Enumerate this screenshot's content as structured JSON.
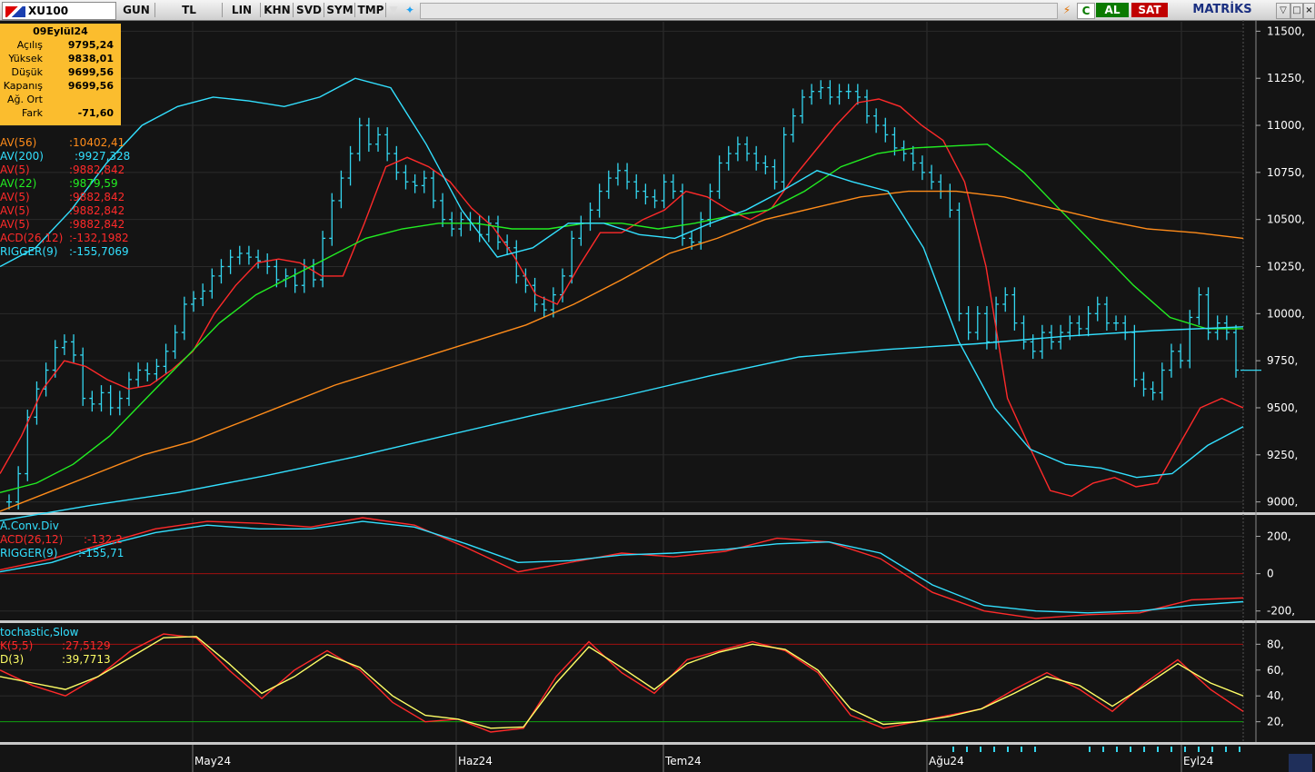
{
  "toolbar": {
    "symbol": "XU100",
    "buttons": [
      "GUN",
      "TL",
      "LIN",
      "KHN",
      "SVD",
      "SYM",
      "TMP"
    ],
    "buy_label": "AL",
    "sell_label": "SAT",
    "brand": "MATRİKS",
    "buy_color": "#0a7a00",
    "sell_color": "#c00000"
  },
  "info": {
    "date": "09Eylül24",
    "rows": [
      {
        "label": "Açılış",
        "value": "9795,24"
      },
      {
        "label": "Yüksek",
        "value": "9838,01"
      },
      {
        "label": "Düşük",
        "value": "9699,56"
      },
      {
        "label": "Kapanış",
        "value": "9699,56"
      },
      {
        "label": "Ağ. Ort",
        "value": ""
      },
      {
        "label": "Fark",
        "value": "-71,60"
      }
    ]
  },
  "main_legend": [
    {
      "label": "AV(56)",
      "value": ":10402,41",
      "color": "#ff8c1a"
    },
    {
      "label": "AV(200)",
      "value": ":9927,328",
      "color": "#33e0ff"
    },
    {
      "label": "AV(5)",
      "value": ":9882,842",
      "color": "#ff2a2a"
    },
    {
      "label": "AV(22)",
      "value": ":9879,59",
      "color": "#22ee22"
    },
    {
      "label": "AV(5)",
      "value": ":9882,842",
      "color": "#ff2a2a"
    },
    {
      "label": "AV(5)",
      "value": ":9882,842",
      "color": "#ff2a2a"
    },
    {
      "label": "AV(5)",
      "value": ":9882,842",
      "color": "#ff2a2a"
    },
    {
      "label": "ACD(26,12)",
      "value": ":-132,1982",
      "color": "#ff2a2a"
    },
    {
      "label": "RIGGER(9)",
      "value": ":-155,7069",
      "color": "#33e0ff"
    }
  ],
  "macd_legend": {
    "title": "A.Conv.Div",
    "items": [
      {
        "label": "ACD(26,12)",
        "value": ":-132,2",
        "color": "#ff2a2a"
      },
      {
        "label": "RIGGER(9)",
        "value": ":-155,71",
        "color": "#33e0ff"
      }
    ]
  },
  "stoch_legend": {
    "title": "tochastic,Slow",
    "items": [
      {
        "label": "K(5,5)",
        "value": ":27,5129",
        "color": "#ff2a2a"
      },
      {
        "label": "D(3)",
        "value": ":39,7713",
        "color": "#ffff66"
      }
    ]
  },
  "chart_data": [
    {
      "type": "bar",
      "subtype": "ohlc",
      "panel": "price",
      "x_labels": [
        "May24",
        "Haz24",
        "Tem24",
        "Ağu24",
        "Eyl24"
      ],
      "ylim": [
        8950,
        11550
      ],
      "yticks": [
        "11500,",
        "11250,",
        "11000,",
        "10750,",
        "10500,",
        "10250,",
        "10000,",
        "9750,",
        "9500,",
        "9250,",
        "9000,"
      ],
      "ytick_values": [
        11500,
        11250,
        11000,
        10750,
        10500,
        10250,
        10000,
        9750,
        9500,
        9250,
        9000
      ],
      "grid": true,
      "bar_close": [
        9000,
        9150,
        9450,
        9600,
        9700,
        9820,
        9850,
        9780,
        9550,
        9520,
        9580,
        9500,
        9550,
        9650,
        9700,
        9680,
        9720,
        9800,
        9900,
        10050,
        10080,
        10120,
        10200,
        10250,
        10300,
        10320,
        10300,
        10280,
        10250,
        10180,
        10200,
        10150,
        10250,
        10180,
        10400,
        10600,
        10720,
        10850,
        11000,
        10900,
        10950,
        10850,
        10750,
        10700,
        10680,
        10720,
        10600,
        10500,
        10450,
        10500,
        10480,
        10420,
        10480,
        10380,
        10350,
        10200,
        10150,
        10050,
        10020,
        10100,
        10200,
        10400,
        10480,
        10550,
        10650,
        10720,
        10760,
        10700,
        10650,
        10620,
        10600,
        10700,
        10650,
        10400,
        10380,
        10500,
        10650,
        10800,
        10850,
        10900,
        10850,
        10800,
        10780,
        10700,
        10950,
        11050,
        11150,
        11180,
        11200,
        11150,
        11180,
        11180,
        11150,
        11050,
        11000,
        10950,
        10880,
        10850,
        10800,
        10750,
        10700,
        10650,
        10550,
        10000,
        9900,
        10000,
        9850,
        10050,
        10100,
        9950,
        9850,
        9800,
        9900,
        9850,
        9900,
        9950,
        9920,
        10000,
        10050,
        9950,
        9950,
        9900,
        9650,
        9600,
        9580,
        9700,
        9800,
        9750,
        9980,
        10100,
        9900,
        9950,
        9900,
        9700
      ],
      "series": [
        {
          "name": "AV(5)",
          "color": "#ff2a2a",
          "values": [
            9150,
            9350,
            9600,
            9750,
            9720,
            9650,
            9600,
            9620,
            9700,
            9800,
            10000,
            10150,
            10270,
            10290,
            10270,
            10200,
            10200,
            10480,
            10780,
            10830,
            10780,
            10700,
            10560,
            10460,
            10300,
            10100,
            10050,
            10250,
            10430,
            10430,
            10500,
            10550,
            10650,
            10620,
            10550,
            10500,
            10560,
            10720,
            10860,
            11000,
            11120,
            11140,
            11100,
            11000,
            10920,
            10700,
            10250,
            9550,
            9300,
            9060,
            9030,
            9100,
            9130,
            9080,
            9100,
            9300,
            9500,
            9550,
            9500
          ]
        },
        {
          "name": "AV(22)",
          "color": "#22ee22",
          "values": [
            9050,
            9100,
            9200,
            9350,
            9550,
            9750,
            9950,
            10100,
            10200,
            10300,
            10400,
            10450,
            10480,
            10480,
            10450,
            10450,
            10480,
            10480,
            10450,
            10480,
            10520,
            10550,
            10650,
            10780,
            10850,
            10880,
            10890,
            10900,
            10750,
            10550,
            10350,
            10150,
            9980,
            9920,
            9920
          ]
        },
        {
          "name": "AV(56)",
          "color": "#ff8c1a",
          "values": [
            8950,
            9050,
            9150,
            9250,
            9320,
            9420,
            9520,
            9620,
            9700,
            9780,
            9860,
            9940,
            10050,
            10180,
            10320,
            10400,
            10500,
            10560,
            10620,
            10650,
            10650,
            10620,
            10560,
            10500,
            10450,
            10430,
            10400
          ]
        },
        {
          "name": "AV(200)",
          "color": "#33e0ff",
          "values": [
            8900,
            8980,
            9050,
            9140,
            9240,
            9350,
            9460,
            9560,
            9670,
            9770,
            9810,
            9840,
            9880,
            9910,
            9930
          ]
        },
        {
          "name": "AV(5)",
          "color": "#33e0ff",
          "values": [
            10250,
            10350,
            10550,
            10800,
            11000,
            11100,
            11150,
            11130,
            11100,
            11150,
            11250,
            11200,
            10900,
            10550,
            10300,
            10350,
            10480,
            10480,
            10420,
            10400,
            10480,
            10550,
            10650,
            10760,
            10700,
            10650,
            10350,
            9850,
            9500,
            9280,
            9200,
            9180,
            9130,
            9150,
            9300,
            9400
          ]
        }
      ]
    },
    {
      "type": "line",
      "panel": "macd",
      "ylim": [
        -250,
        300
      ],
      "yticks": [
        "200,",
        "0",
        "-200,"
      ],
      "ytick_values": [
        200,
        0,
        -200
      ],
      "series": [
        {
          "name": "ACD(26,12)",
          "color": "#ff2a2a",
          "values": [
            20,
            80,
            160,
            240,
            280,
            270,
            250,
            300,
            260,
            140,
            10,
            60,
            110,
            90,
            120,
            190,
            170,
            80,
            -100,
            -200,
            -240,
            -220,
            -210,
            -140,
            -130
          ]
        },
        {
          "name": "RIGGER(9)",
          "color": "#33e0ff",
          "values": [
            10,
            60,
            150,
            220,
            260,
            240,
            240,
            280,
            250,
            160,
            60,
            70,
            100,
            110,
            130,
            160,
            170,
            110,
            -60,
            -170,
            -200,
            -210,
            -200,
            -170,
            -150
          ]
        }
      ]
    },
    {
      "type": "line",
      "panel": "stochastic",
      "ylim": [
        5,
        95
      ],
      "yticks": [
        "80,",
        "60,",
        "40,",
        "20,"
      ],
      "ytick_values": [
        80,
        60,
        40,
        20
      ],
      "series": [
        {
          "name": "K(5,5)",
          "color": "#ff2a2a",
          "values": [
            60,
            48,
            40,
            55,
            75,
            88,
            85,
            60,
            38,
            60,
            75,
            60,
            35,
            20,
            22,
            12,
            15,
            55,
            82,
            58,
            42,
            68,
            75,
            82,
            75,
            58,
            25,
            15,
            20,
            25,
            30,
            45,
            58,
            45,
            28,
            50,
            68,
            45,
            28
          ]
        },
        {
          "name": "D(3)",
          "color": "#ffff66",
          "values": [
            55,
            50,
            45,
            55,
            70,
            85,
            86,
            65,
            42,
            55,
            72,
            62,
            40,
            25,
            22,
            15,
            16,
            50,
            78,
            62,
            45,
            65,
            74,
            80,
            76,
            60,
            30,
            18,
            20,
            24,
            30,
            42,
            55,
            48,
            32,
            48,
            65,
            50,
            40
          ]
        }
      ]
    }
  ]
}
